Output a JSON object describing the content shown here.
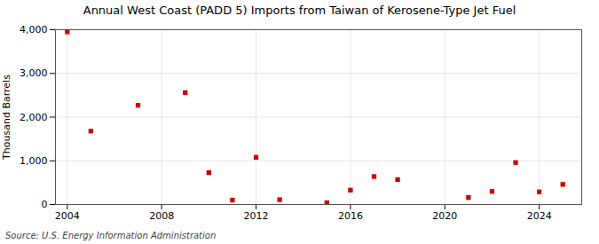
{
  "chart_data": {
    "type": "scatter",
    "title": "Annual West Coast (PADD 5) Imports from Taiwan of Kerosene-Type Jet Fuel",
    "ylabel": "Thousand Barrels",
    "source": "Source: U.S. Energy Information Administration",
    "x": [
      2004,
      2005,
      2007,
      2009,
      2010,
      2011,
      2012,
      2013,
      2015,
      2016,
      2017,
      2018,
      2021,
      2022,
      2023,
      2024,
      2025
    ],
    "values": [
      3950,
      1680,
      2270,
      2560,
      730,
      100,
      1080,
      110,
      40,
      330,
      640,
      570,
      160,
      300,
      960,
      290,
      460
    ],
    "color": "#cc0000",
    "marker": "square",
    "xlim": [
      2003.5,
      2025.8
    ],
    "ylim": [
      0,
      4000
    ],
    "xticks": [
      2004,
      2008,
      2012,
      2016,
      2020,
      2024
    ],
    "yticks": [
      0,
      {
        "value": 1000,
        "label": "1,000"
      },
      {
        "value": 2000,
        "label": "2,000"
      },
      {
        "value": 3000,
        "label": "3,000"
      },
      {
        "value": 4000,
        "label": "4,000"
      }
    ],
    "grid": true
  }
}
